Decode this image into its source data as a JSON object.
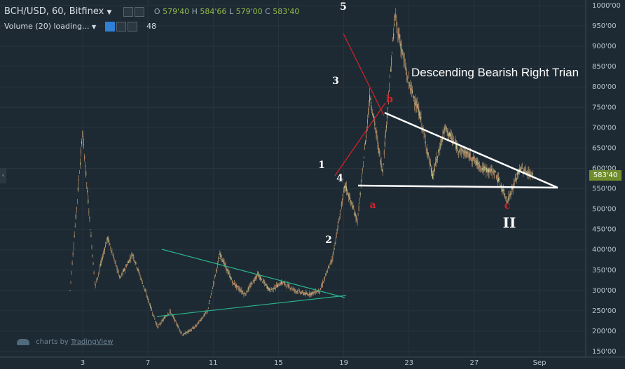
{
  "header": {
    "symbol": "BCH/USD, 60, Bitfinex",
    "o_label": "O",
    "o_value": "579'40",
    "h_label": "H",
    "h_value": "584'66",
    "l_label": "L",
    "l_value": "579'00",
    "c_label": "C",
    "c_value": "583'40",
    "indicator": "Volume (20) loading...",
    "indicator_value": "48",
    "dropdown_icon": "caret-down-icon"
  },
  "price_tag": "583'40",
  "watermark": {
    "prefix": "charts by",
    "brand": "TradingView"
  },
  "colors": {
    "background": "#1e2a33",
    "candles": "#c9a070",
    "price_tag": "#6f8d2b",
    "triangle_lines": "#ffffff",
    "elliott_lines": "#d8222a",
    "pennant_lines": "#2bb58d"
  },
  "chart_data": {
    "type": "candlestick",
    "ylim": [
      170,
      1000
    ],
    "y_ticks": [
      "1000'00",
      "950'00",
      "900'00",
      "850'00",
      "800'00",
      "750'00",
      "700'00",
      "650'00",
      "600'00",
      "550'00",
      "500'00",
      "450'00",
      "400'00",
      "350'00",
      "300'00",
      "250'00",
      "200'00",
      "150'00"
    ],
    "x_ticks": [
      "3",
      "7",
      "11",
      "15",
      "19",
      "23",
      "27",
      "Sep"
    ],
    "price_path": [
      [
        "3",
        300
      ],
      [
        "3",
        690
      ],
      [
        "3",
        310
      ],
      [
        "3",
        430
      ],
      [
        "3",
        330
      ],
      [
        "3",
        390
      ],
      [
        "7",
        300
      ],
      [
        "7",
        210
      ],
      [
        "7",
        250
      ],
      [
        "7",
        190
      ],
      [
        "7",
        210
      ],
      [
        "11",
        250
      ],
      [
        "11",
        390
      ],
      [
        "11",
        320
      ],
      [
        "11",
        290
      ],
      [
        "11",
        340
      ],
      [
        "11",
        300
      ],
      [
        "15",
        320
      ],
      [
        "15",
        300
      ],
      [
        "15",
        290
      ],
      [
        "15",
        300
      ],
      [
        "19",
        380
      ],
      [
        "19",
        560
      ],
      [
        "19",
        470
      ],
      [
        "19",
        780
      ],
      [
        "19",
        590
      ],
      [
        "19",
        975
      ],
      [
        "19",
        820
      ],
      [
        "23",
        730
      ],
      [
        "23",
        580
      ],
      [
        "23",
        700
      ],
      [
        "23",
        650
      ],
      [
        "27",
        630
      ],
      [
        "27",
        600
      ],
      [
        "27",
        590
      ],
      [
        "27",
        520
      ],
      [
        "27",
        600
      ],
      [
        "27",
        583.4
      ]
    ],
    "last_price": 583.4,
    "wave_labels": [
      {
        "text": "5",
        "x": "19",
        "y": 990
      },
      {
        "text": "3",
        "x": "19",
        "y": 820
      },
      {
        "text": "1",
        "x": "19",
        "y": 610
      },
      {
        "text": "4",
        "x": "19",
        "y": 580
      },
      {
        "text": "2",
        "x": "19",
        "y": 440
      }
    ],
    "abc_labels": [
      {
        "text": "b",
        "x": "23",
        "y": 745
      },
      {
        "text": "a",
        "x": "23",
        "y": 520
      },
      {
        "text": "c",
        "x": "27",
        "y": 518
      }
    ],
    "corrective_label": "II",
    "annotation": "Descending Bearish Right Trian"
  }
}
